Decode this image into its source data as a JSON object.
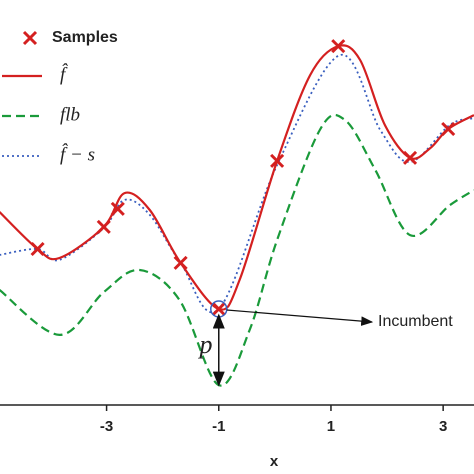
{
  "chart_data": {
    "type": "line",
    "x_label": "x",
    "xlim": [
      -4.9,
      3.55
    ],
    "ylim": [
      0,
      10
    ],
    "xticks": [
      -3,
      -1,
      1,
      3
    ],
    "series": [
      {
        "name": "f̂",
        "color": "#d42020",
        "style": "solid",
        "x": [
          -4.91,
          -4.23,
          -3.84,
          -3.05,
          -2.68,
          -2.23,
          -1.68,
          -1.0,
          -0.63,
          0.04,
          0.63,
          1.13,
          1.52,
          1.96,
          2.41,
          2.77,
          3.09,
          3.55
        ],
        "values": [
          5.15,
          4.16,
          3.92,
          4.75,
          5.65,
          5.2,
          3.79,
          2.56,
          3.33,
          6.51,
          8.8,
          9.57,
          9.2,
          7.47,
          6.59,
          6.85,
          7.36,
          7.73
        ]
      },
      {
        "name": "flb",
        "color": "#1a9a3a",
        "style": "dashed",
        "x": [
          -4.91,
          -3.84,
          -3.05,
          -2.41,
          -1.7,
          -1.0,
          -0.45,
          0.04,
          0.8,
          1.25,
          1.79,
          2.41,
          3.12,
          3.55
        ],
        "values": [
          3.07,
          1.87,
          3.01,
          3.6,
          2.8,
          0.53,
          2.0,
          4.4,
          7.33,
          7.6,
          6.27,
          4.53,
          5.33,
          5.73
        ]
      },
      {
        "name": "f̂ − s",
        "color": "#3a5fbf",
        "style": "dotted",
        "x": [
          -4.91,
          -4.23,
          -3.84,
          -3.05,
          -2.68,
          -2.23,
          -1.68,
          -1.0,
          0.04,
          1.16,
          1.88,
          2.41,
          3.12,
          3.55
        ],
        "values": [
          4.0,
          4.16,
          3.87,
          4.72,
          5.47,
          5.07,
          3.79,
          2.56,
          6.4,
          9.33,
          7.33,
          6.48,
          7.47,
          7.65
        ]
      }
    ],
    "samples": {
      "name": "Samples",
      "color": "#d42020",
      "x": [
        -4.23,
        -3.05,
        -2.8,
        -1.68,
        -1.0,
        0.04,
        1.13,
        2.41,
        3.09
      ],
      "values": [
        4.16,
        4.75,
        5.23,
        3.79,
        2.56,
        6.51,
        9.57,
        6.59,
        7.36
      ]
    },
    "annotations": {
      "incumbent": "Incumbent",
      "gap": "p"
    }
  }
}
